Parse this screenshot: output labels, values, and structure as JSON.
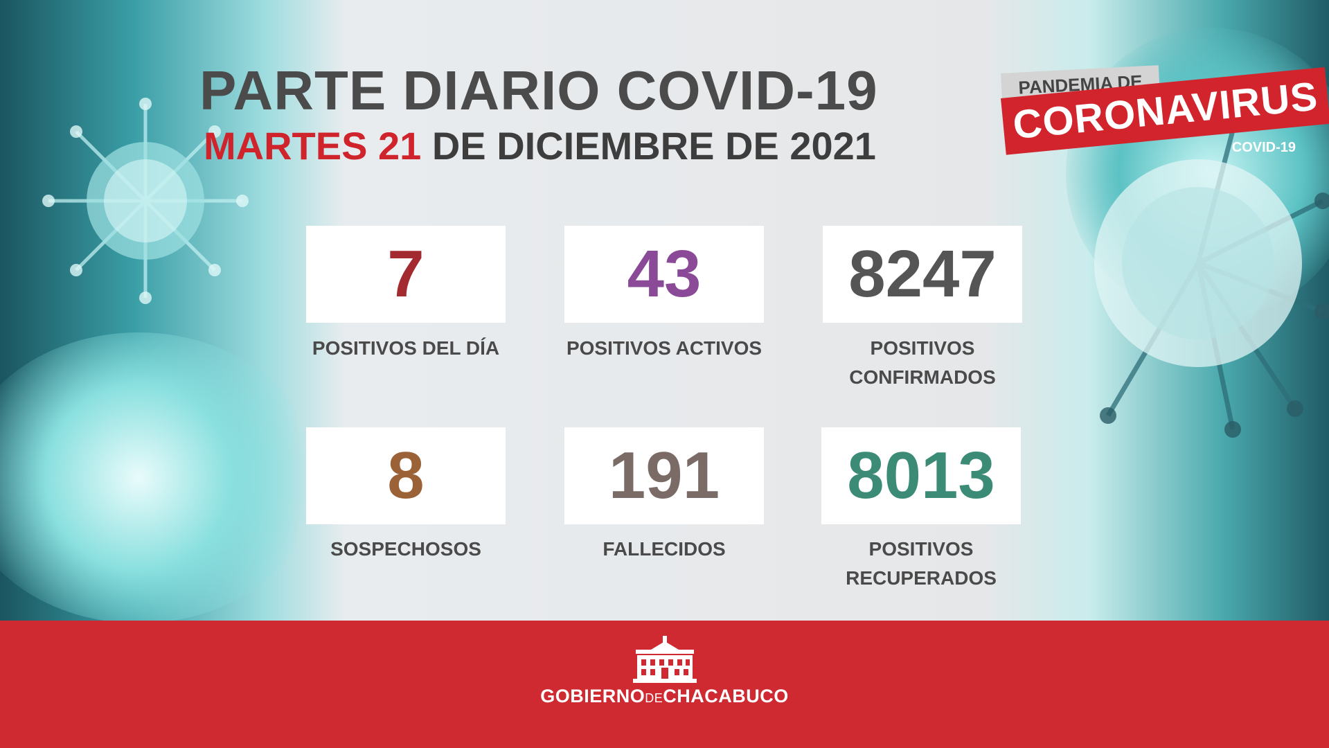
{
  "header": {
    "title": "PARTE DIARIO COVID-19",
    "date_highlight": "MARTES 21",
    "date_rest": " DE DICIEMBRE DE 2021"
  },
  "badge": {
    "top": "PANDEMIA DE",
    "main": "CORONAVIRUS",
    "sub": "COVID-19"
  },
  "stats": [
    {
      "value": "7",
      "label_line1": "POSITIVOS DEL DÍA",
      "label_line2": "",
      "color": "#a32a2f"
    },
    {
      "value": "43",
      "label_line1": "POSITIVOS ACTIVOS",
      "label_line2": "",
      "color": "#8a4a98"
    },
    {
      "value": "8247",
      "label_line1": "POSITIVOS",
      "label_line2": "CONFIRMADOS",
      "color": "#555555"
    },
    {
      "value": "8",
      "label_line1": "SOSPECHOSOS",
      "label_line2": "",
      "color": "#9a6236"
    },
    {
      "value": "191",
      "label_line1": "FALLECIDOS",
      "label_line2": "",
      "color": "#7b6b66"
    },
    {
      "value": "8013",
      "label_line1": "POSITIVOS",
      "label_line2": "RECUPERADOS",
      "color": "#3b8b77"
    }
  ],
  "footer": {
    "org_part1": "GOBIERNO",
    "org_de": "DE",
    "org_part2": "CHACABUCO"
  },
  "colors": {
    "accent_red": "#cf2a31",
    "text_gray": "#4a4a4a"
  },
  "icons": [
    "virus-icon",
    "government-building-icon"
  ]
}
